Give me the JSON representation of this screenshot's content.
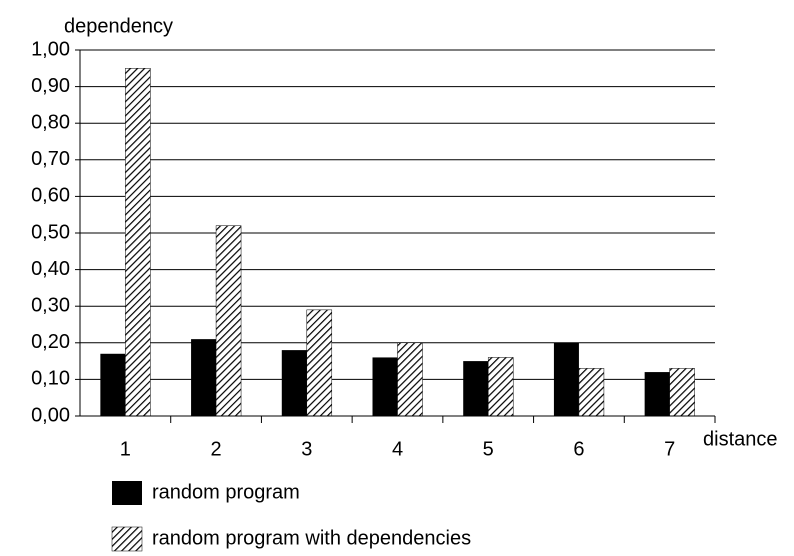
{
  "chart_data": {
    "type": "bar",
    "y_label": "dependency",
    "x_label": "distance",
    "categories": [
      "1",
      "2",
      "3",
      "4",
      "5",
      "6",
      "7"
    ],
    "series": [
      {
        "name": "random program",
        "color": "#000000",
        "values": [
          0.17,
          0.21,
          0.18,
          0.16,
          0.15,
          0.2,
          0.12
        ]
      },
      {
        "name": "random program with dependencies",
        "color": "#000000",
        "pattern": "diagonal-hatch",
        "values": [
          0.95,
          0.52,
          0.29,
          0.2,
          0.16,
          0.13,
          0.13
        ]
      }
    ],
    "ylim": [
      0,
      1
    ],
    "yticks": [
      {
        "value": 0,
        "label": "0,00"
      },
      {
        "value": 0.1,
        "label": "0,10"
      },
      {
        "value": 0.2,
        "label": "0,20"
      },
      {
        "value": 0.3,
        "label": "0,30"
      },
      {
        "value": 0.4,
        "label": "0,40"
      },
      {
        "value": 0.5,
        "label": "0,50"
      },
      {
        "value": 0.6,
        "label": "0,60"
      },
      {
        "value": 0.7,
        "label": "0,70"
      },
      {
        "value": 0.8,
        "label": "0,80"
      },
      {
        "value": 0.9,
        "label": "0,90"
      },
      {
        "value": 1,
        "label": "1,00"
      }
    ],
    "grid": true
  }
}
